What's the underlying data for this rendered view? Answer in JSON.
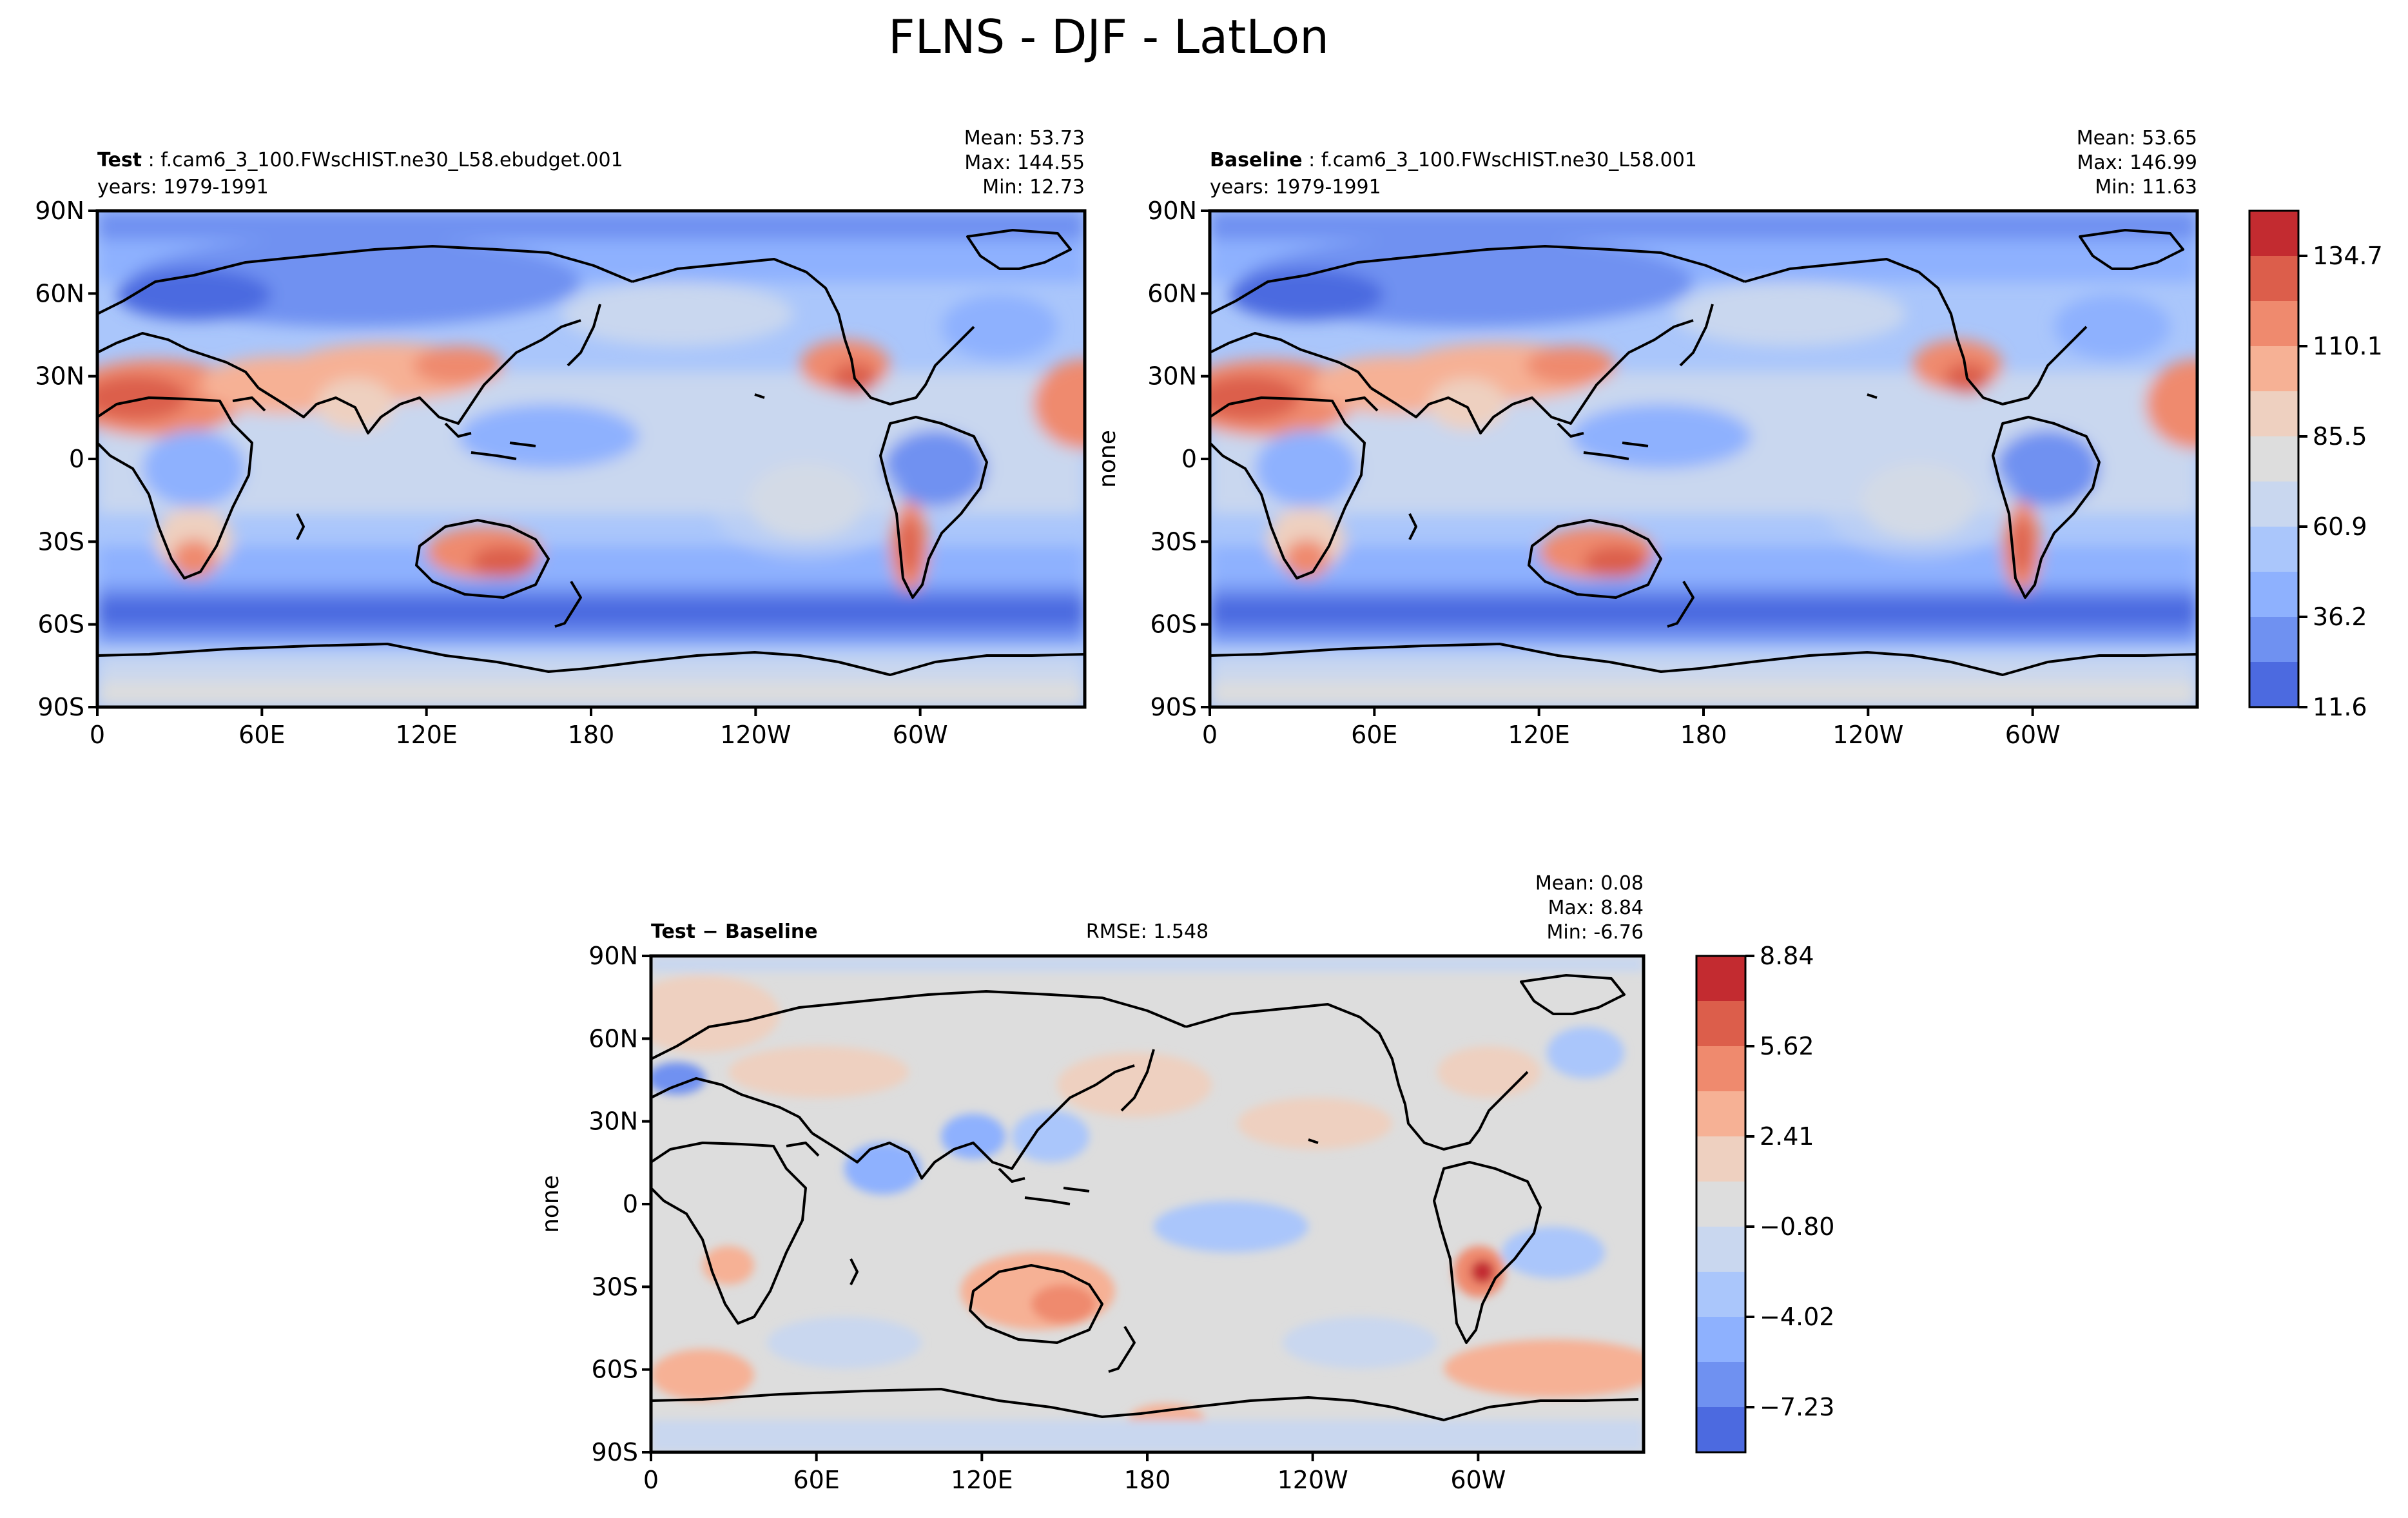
{
  "figure": {
    "title": "FLNS - DJF - LatLon"
  },
  "panels": [
    {
      "id": "test",
      "label_bold": "Test",
      "label_rest": " : f.cam6_3_100.FWscHIST.ne30_L58.ebudget.001",
      "years": "years: 1979-1991",
      "mean": "Mean: 53.73",
      "max": "Max: 144.55",
      "min": "Min: 12.73",
      "ylabel": ""
    },
    {
      "id": "baseline",
      "label_bold": "Baseline",
      "label_rest": " : f.cam6_3_100.FWscHIST.ne30_L58.001",
      "years": "years: 1979-1991",
      "mean": "Mean: 53.65",
      "max": "Max: 146.99",
      "min": "Min: 11.63",
      "ylabel": "none"
    },
    {
      "id": "diff",
      "label_bold": "Test − Baseline",
      "rmse": "RMSE: 1.548",
      "mean": "Mean:  0.08",
      "max": "Max:  8.84",
      "min": "Min: -6.76",
      "ylabel": "none"
    }
  ],
  "axes": {
    "x_ticks": [
      "0",
      "60E",
      "120E",
      "180",
      "120W",
      "60W"
    ],
    "y_ticks": [
      "90N",
      "60N",
      "30N",
      "0",
      "30S",
      "60S",
      "90S"
    ]
  },
  "colorbars": {
    "main": {
      "labels": [
        "134.7",
        "110.1",
        "85.5",
        "60.9",
        "36.2",
        "11.6"
      ],
      "colors": [
        "#c32b30",
        "#dc5e4b",
        "#ef8a6e",
        "#f6b195",
        "#eed0c0",
        "#dddddd",
        "#c9d7ef",
        "#aac6fb",
        "#8eb1fe",
        "#6f91f1",
        "#4c6ae0"
      ]
    },
    "diff": {
      "labels": [
        "8.84",
        "5.62",
        "2.41",
        "−0.80",
        "−4.02",
        "−7.23"
      ],
      "colors": [
        "#c32b30",
        "#dc5e4b",
        "#ef8a6e",
        "#f6b195",
        "#eed0c0",
        "#dddddd",
        "#c9d7ef",
        "#aac6fb",
        "#8eb1fe",
        "#6f91f1",
        "#4c6ae0"
      ]
    }
  },
  "chart_data": [
    {
      "type": "heatmap",
      "name": "Test",
      "xlabel": "",
      "ylabel": "",
      "xlim": [
        0,
        360
      ],
      "ylim": [
        -90,
        90
      ],
      "stats": {
        "mean": 53.73,
        "max": 144.55,
        "min": 12.73
      },
      "colorbar_ticks": [
        11.6,
        36.2,
        60.9,
        85.5,
        110.1,
        134.7
      ]
    },
    {
      "type": "heatmap",
      "name": "Baseline",
      "xlabel": "",
      "ylabel": "none",
      "xlim": [
        0,
        360
      ],
      "ylim": [
        -90,
        90
      ],
      "stats": {
        "mean": 53.65,
        "max": 146.99,
        "min": 11.63
      },
      "colorbar_ticks": [
        11.6,
        36.2,
        60.9,
        85.5,
        110.1,
        134.7
      ]
    },
    {
      "type": "heatmap",
      "name": "Test − Baseline",
      "xlabel": "",
      "ylabel": "none",
      "xlim": [
        0,
        360
      ],
      "ylim": [
        -90,
        90
      ],
      "stats": {
        "mean": 0.08,
        "max": 8.84,
        "min": -6.76,
        "rmse": 1.548
      },
      "colorbar_ticks": [
        -7.23,
        -4.02,
        -0.8,
        2.41,
        5.62,
        8.84
      ]
    }
  ]
}
